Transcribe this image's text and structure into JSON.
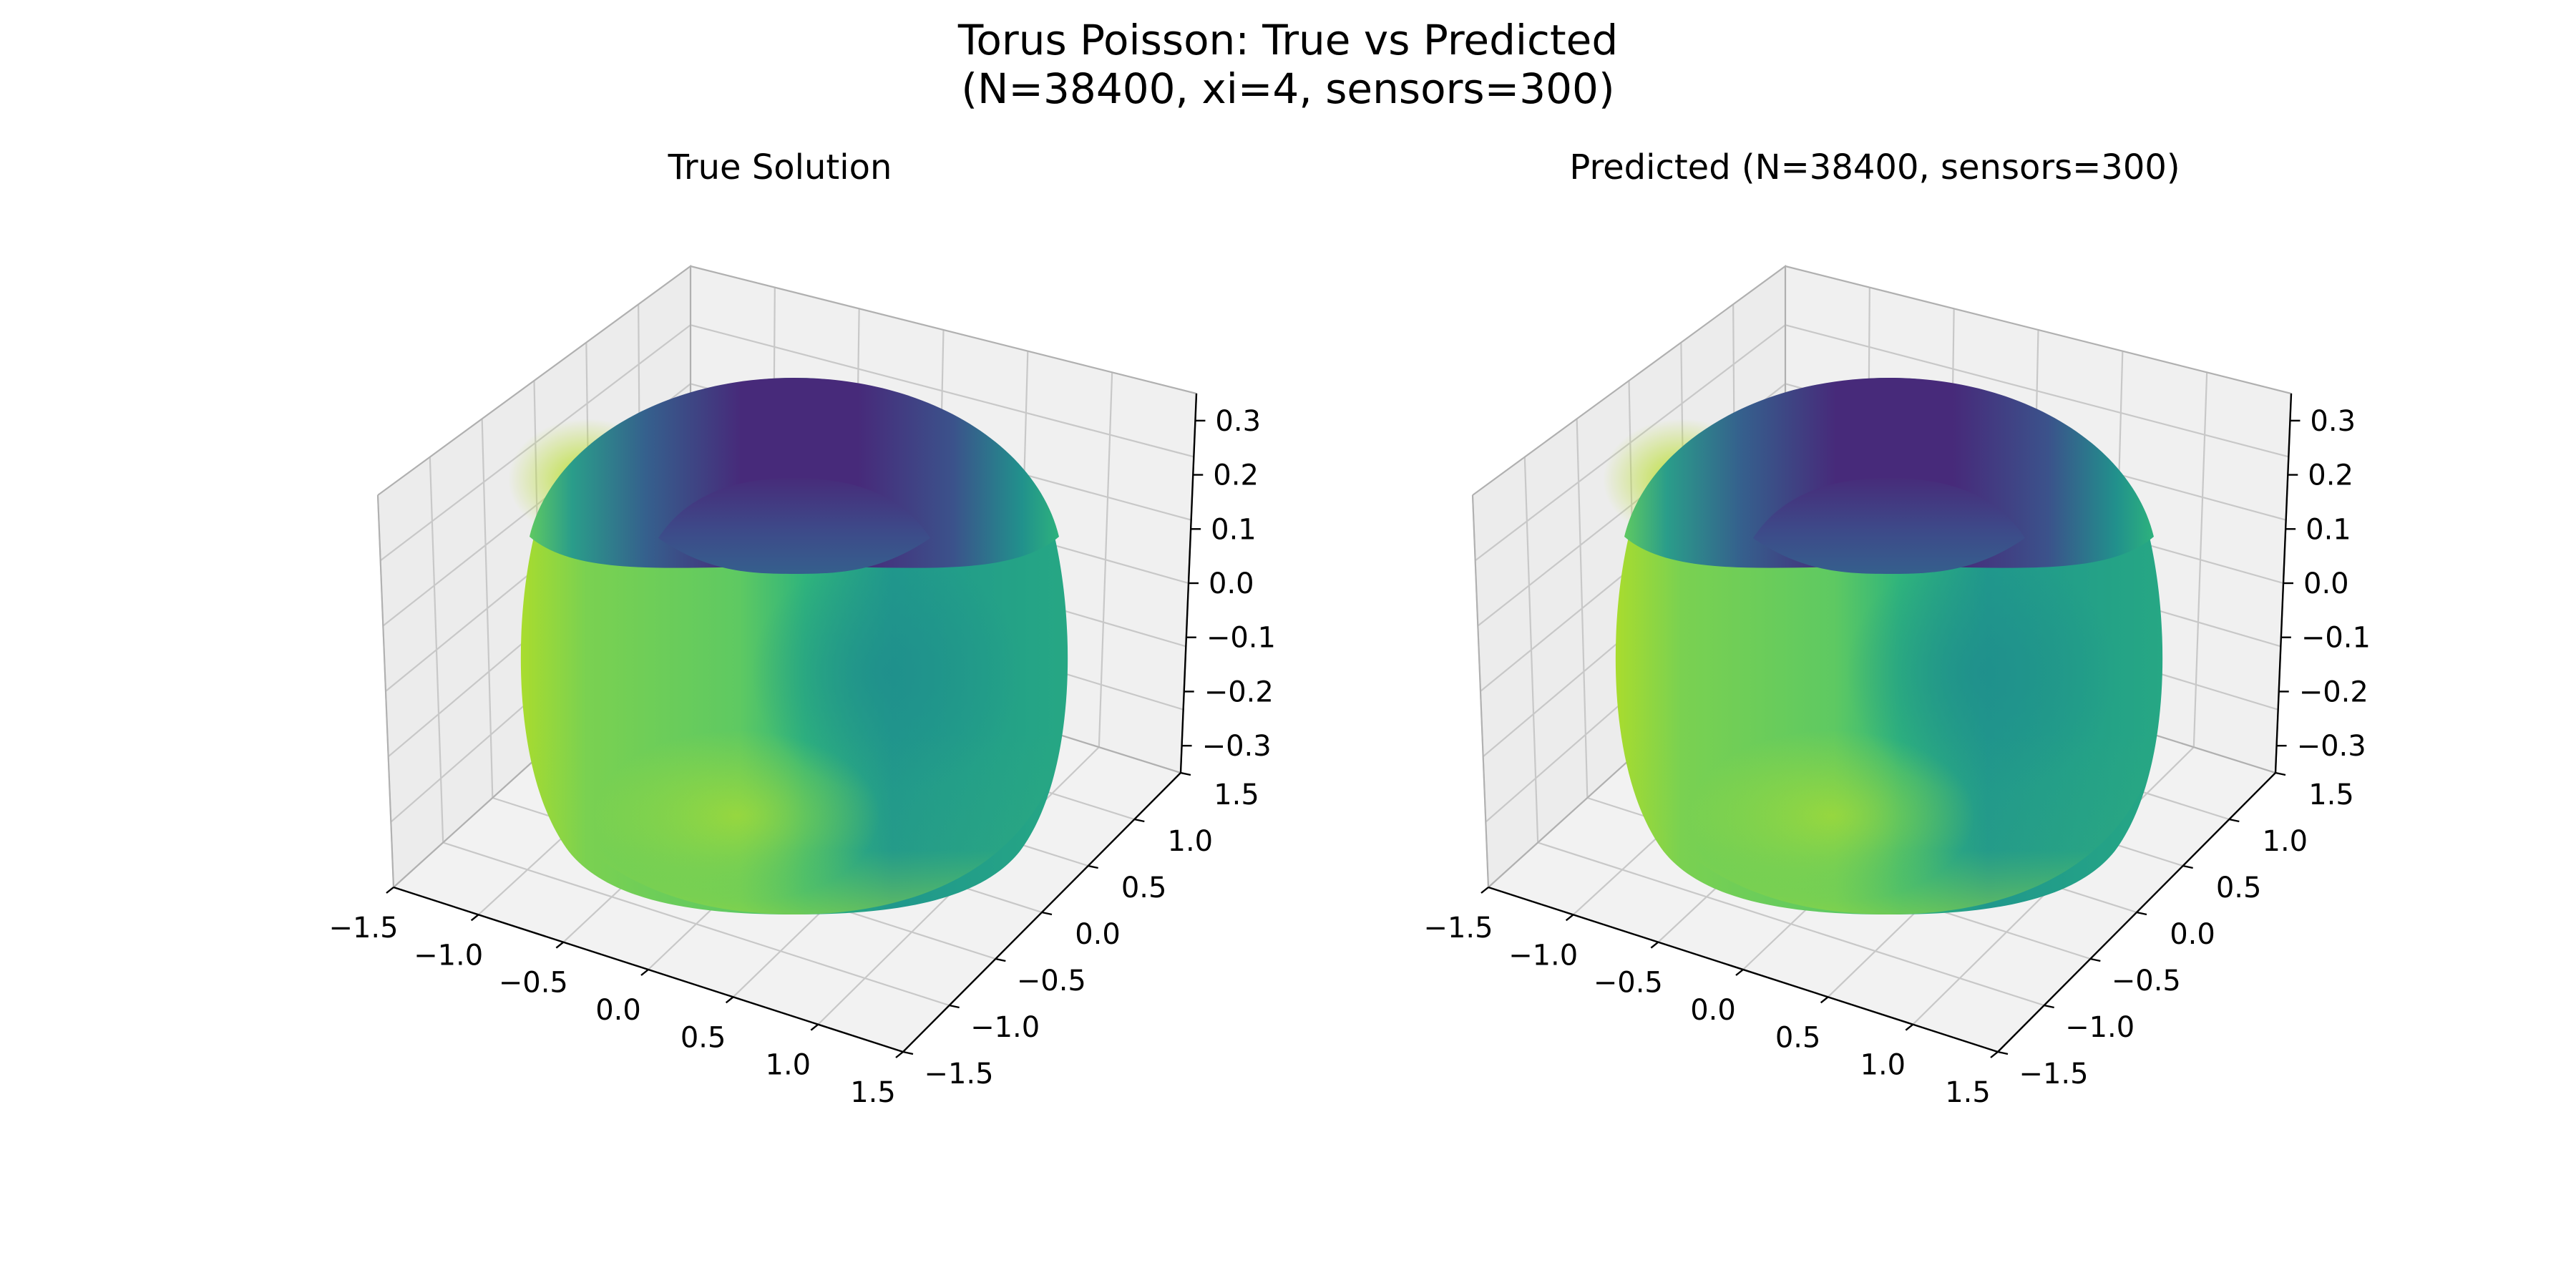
{
  "figure": {
    "title_line1": "Torus Poisson: True vs Predicted",
    "title_line2": "(N=38400, xi=4, sensors=300)"
  },
  "chart_data": [
    {
      "type": "surface3d",
      "title": "True Solution",
      "surface": "torus",
      "colormap": "viridis",
      "x_ticks": [
        "−1.5",
        "−1.0",
        "−0.5",
        "0.0",
        "0.5",
        "1.0",
        "1.5"
      ],
      "y_ticks": [
        "−1.5",
        "−1.0",
        "−0.5",
        "0.0",
        "0.5",
        "1.0",
        "1.5"
      ],
      "z_ticks": [
        "−0.3",
        "−0.2",
        "−0.1",
        "0.0",
        "0.1",
        "0.2",
        "0.3"
      ],
      "xlim": [
        -1.5,
        1.5
      ],
      "ylim": [
        -1.5,
        1.5
      ],
      "zlim": [
        -0.35,
        0.35
      ],
      "grid": true
    },
    {
      "type": "surface3d",
      "title": "Predicted (N=38400, sensors=300)",
      "surface": "torus",
      "colormap": "viridis",
      "x_ticks": [
        "−1.5",
        "−1.0",
        "−0.5",
        "0.0",
        "0.5",
        "1.0",
        "1.5"
      ],
      "y_ticks": [
        "−1.5",
        "−1.0",
        "−0.5",
        "0.0",
        "0.5",
        "1.0",
        "1.5"
      ],
      "z_ticks": [
        "−0.3",
        "−0.2",
        "−0.1",
        "0.0",
        "0.1",
        "0.2",
        "0.3"
      ],
      "xlim": [
        -1.5,
        1.5
      ],
      "ylim": [
        -1.5,
        1.5
      ],
      "zlim": [
        -0.35,
        0.35
      ],
      "grid": true
    }
  ]
}
